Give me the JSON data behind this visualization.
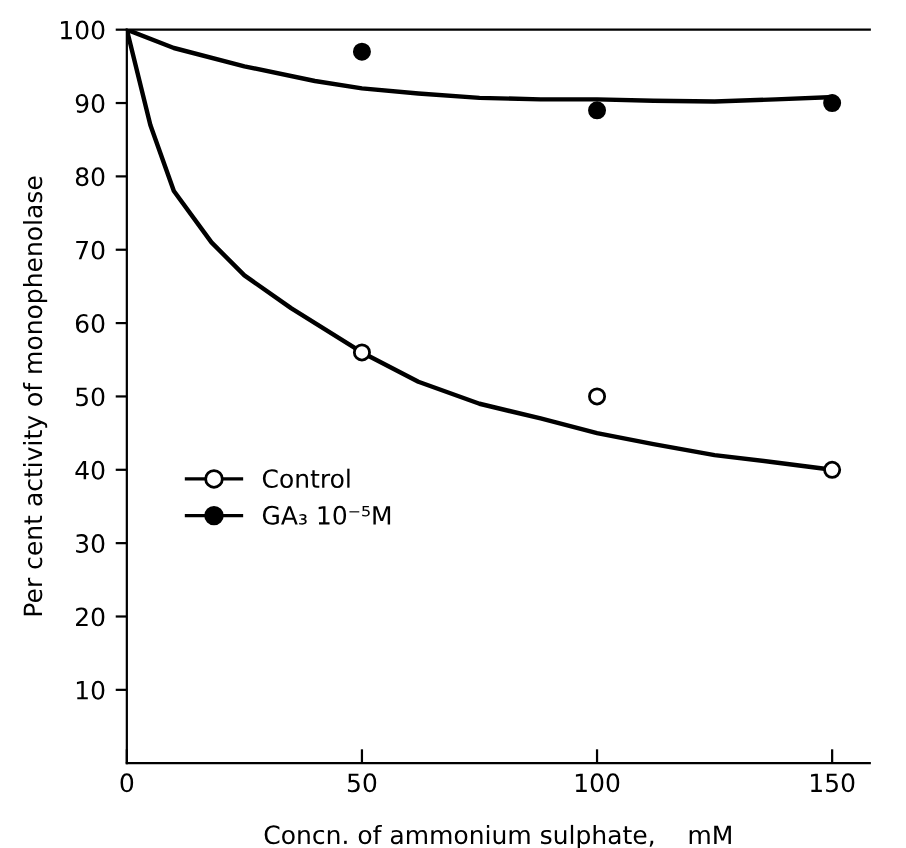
{
  "chart_data": {
    "type": "scatter",
    "xlabel": "Concn. of ammonium sulphate,    mM",
    "ylabel": "Per cent activity of monophenolase",
    "series": [
      {
        "name": "Control",
        "color": "#ffffff",
        "marker": "circle",
        "x": [
          50,
          100,
          150
        ],
        "values": [
          56,
          50,
          40
        ]
      },
      {
        "name": "GA₃ 10⁻⁵M",
        "color": "#000000",
        "marker": "circle",
        "x": [
          50,
          100,
          150
        ],
        "values": [
          97,
          89,
          90
        ]
      },
      {
        "type": "line",
        "color": "#000000",
        "marker": "none",
        "x": [
          0,
          5,
          10,
          18,
          25,
          35,
          50,
          62,
          75,
          88,
          100,
          112,
          125,
          138,
          150
        ],
        "values": [
          100,
          87,
          78,
          71,
          66.5,
          62,
          56,
          52,
          49,
          47,
          45,
          43.5,
          42,
          41,
          40
        ]
      },
      {
        "type": "line",
        "color": "#000000",
        "marker": "none",
        "x": [
          0,
          10,
          25,
          40,
          50,
          62,
          75,
          88,
          100,
          112,
          125,
          138,
          150
        ],
        "values": [
          100,
          97.5,
          95,
          93,
          92,
          91.3,
          90.7,
          90.5,
          90.5,
          90.3,
          90.2,
          90.5,
          90.8
        ]
      }
    ],
    "xlim": [
      0,
      158
    ],
    "ylim": [
      0,
      100
    ],
    "xticks": [
      0,
      50,
      100,
      150
    ],
    "yticks": [
      10,
      20,
      30,
      40,
      50,
      60,
      70,
      80,
      90,
      100
    ],
    "grid": false,
    "legend": "left"
  }
}
